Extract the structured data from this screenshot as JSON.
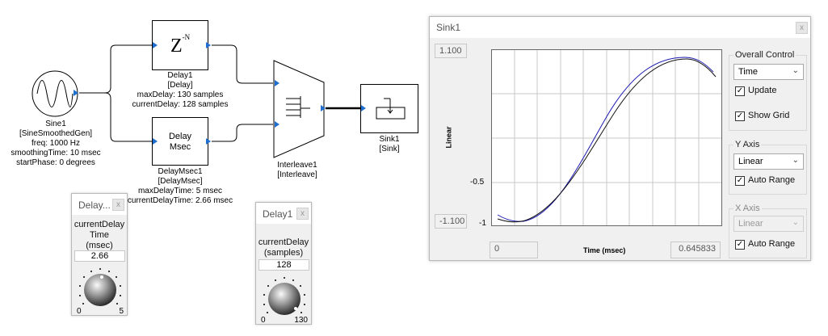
{
  "blocks": {
    "sine": {
      "lines": [
        "Sine1",
        "[SineSmoothedGen]",
        "freq: 1000 Hz",
        "smoothingTime: 10 msec",
        "startPhase: 0 degrees"
      ]
    },
    "delay1": {
      "symbol": "Z",
      "symbol_sup": "-N",
      "lines": [
        "Delay1",
        "[Delay]",
        "maxDelay: 130 samples",
        "currentDelay: 128 samples"
      ]
    },
    "delaymsec": {
      "symbol_lines": [
        "Delay",
        "Msec"
      ],
      "lines": [
        "DelayMsec1",
        "[DelayMsec]",
        "maxDelayTime: 5 msec",
        "currentDelayTime: 2.66 msec"
      ]
    },
    "interleave": {
      "lines": [
        "Interleave1",
        "[Interleave]"
      ]
    },
    "sink": {
      "lines": [
        "Sink1",
        "[Sink]"
      ]
    }
  },
  "sink_window": {
    "title": "Sink1",
    "close_label": "x",
    "y_max_field": "1.100",
    "y_min_field": "-1.100",
    "x_min_field": "0",
    "x_max_field": "0.645833",
    "y_axis_label": "Linear",
    "x_axis_label": "Time (msec)",
    "y_ticks": [
      "-0.5",
      "-1"
    ],
    "overall_control": {
      "title": "Overall Control",
      "select_value": "Time",
      "update_label": "Update",
      "update_checked": true,
      "show_grid_label": "Show Grid",
      "show_grid_checked": true
    },
    "y_axis_group": {
      "title": "Y Axis",
      "select_value": "Linear",
      "auto_range_label": "Auto Range",
      "auto_range_checked": true
    },
    "x_axis_group": {
      "title": "X Axis",
      "select_value": "Linear",
      "select_disabled": true,
      "auto_range_label": "Auto Range",
      "auto_range_checked": true
    },
    "colors": {
      "series_blue": "#1a1ab0",
      "series_black": "#111111",
      "grid": "#c8c8c8"
    }
  },
  "knob_delaymsec": {
    "title": "Delay...",
    "close_label": "x",
    "label_lines": [
      "currentDelay",
      "Time",
      "(msec)"
    ],
    "value": "2.66",
    "min_label": "0",
    "max_label": "5"
  },
  "knob_delay1": {
    "title": "Delay1",
    "close_label": "x",
    "label_lines": [
      "currentDelay",
      "(samples)"
    ],
    "value": "128",
    "min_label": "0",
    "max_label": "130"
  },
  "icons": {
    "close": "close-icon",
    "chevron": "chevron-down-icon",
    "check": "✓"
  }
}
